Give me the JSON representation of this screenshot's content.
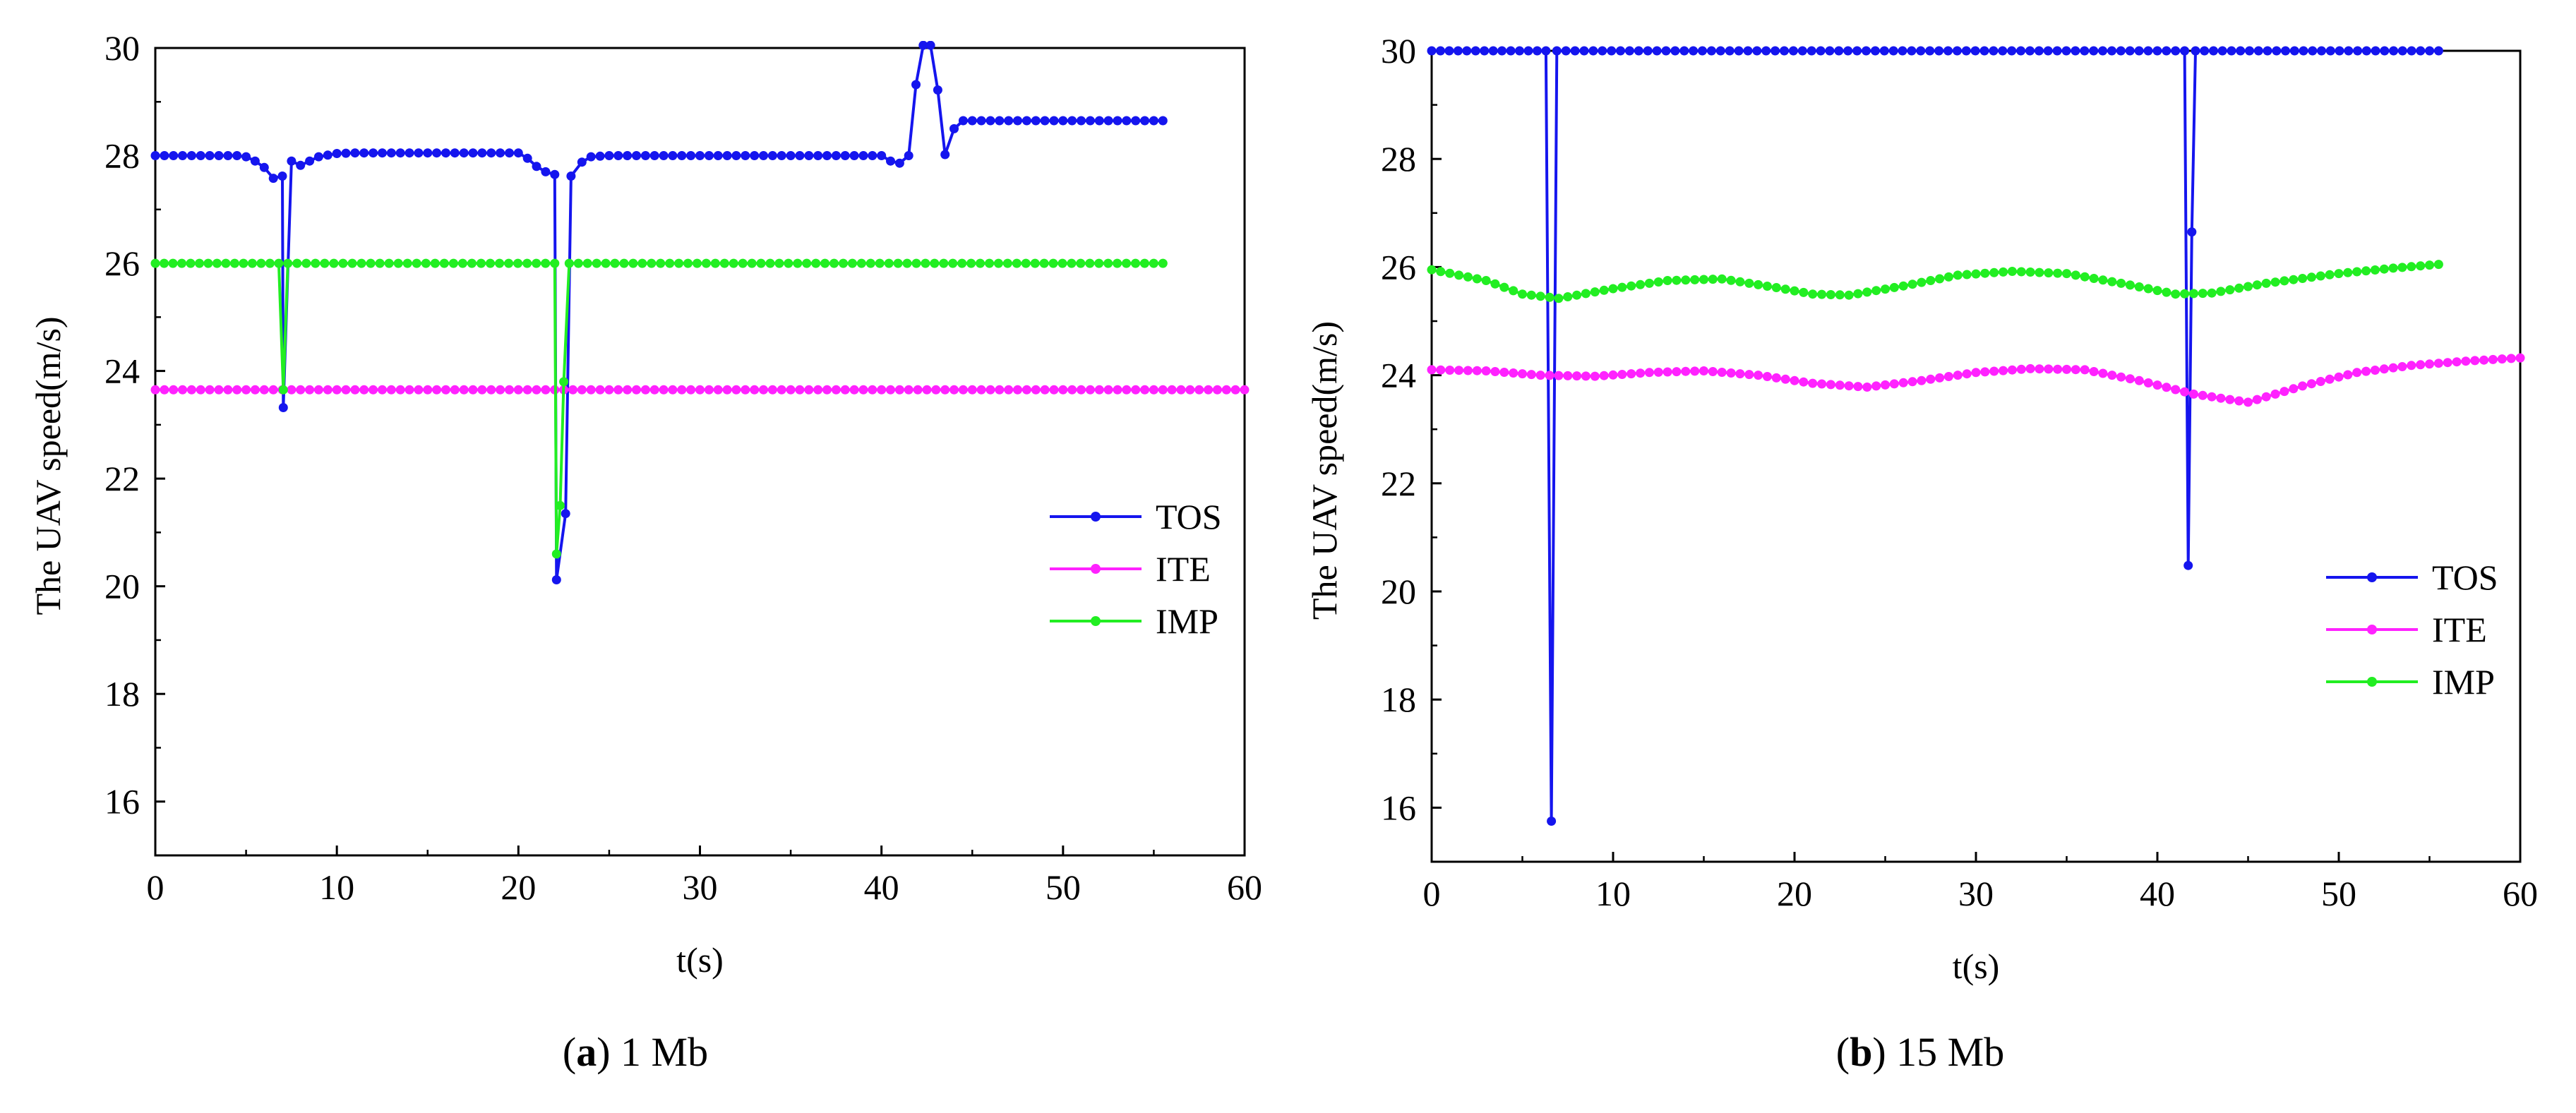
{
  "figure": {
    "captions": [
      {
        "tag": "a",
        "text": "1 Mb"
      },
      {
        "tag": "b",
        "text": "15 Mb"
      }
    ]
  },
  "chart_data": [
    {
      "type": "line",
      "title": "",
      "xlabel": "t(s)",
      "ylabel": "The UAV speed(m/s)",
      "xlim": [
        0,
        60
      ],
      "ylim": [
        15,
        30
      ],
      "xticks": [
        0,
        10,
        20,
        30,
        40,
        50,
        60
      ],
      "yticks": [
        16,
        18,
        20,
        22,
        24,
        26,
        28,
        30
      ],
      "legend_position": "right",
      "grid": false,
      "series": [
        {
          "name": "TOS",
          "color": "#1515ee",
          "points": [
            [
              0,
              28
            ],
            [
              4.5,
              28
            ],
            [
              5,
              27.98
            ],
            [
              5.5,
              27.9
            ],
            [
              6,
              27.78
            ],
            [
              6.5,
              27.58
            ],
            [
              7,
              27.62
            ],
            [
              7.05,
              23.32
            ],
            [
              7.5,
              27.9
            ],
            [
              8,
              27.82
            ],
            [
              8.5,
              27.9
            ],
            [
              9,
              27.98
            ],
            [
              10,
              28.04
            ],
            [
              11,
              28.05
            ],
            [
              20,
              28.05
            ],
            [
              20.5,
              27.95
            ],
            [
              21,
              27.8
            ],
            [
              21.5,
              27.7
            ],
            [
              22,
              27.65
            ],
            [
              22.1,
              20.12
            ],
            [
              22.6,
              21.35
            ],
            [
              22.9,
              27.62
            ],
            [
              23.5,
              27.88
            ],
            [
              24,
              27.98
            ],
            [
              25,
              28
            ],
            [
              40,
              28
            ],
            [
              40.5,
              27.9
            ],
            [
              41,
              27.86
            ],
            [
              41.5,
              28
            ],
            [
              41.9,
              29.32
            ],
            [
              42.3,
              30.05
            ],
            [
              42.7,
              30.05
            ],
            [
              43.1,
              29.22
            ],
            [
              43.5,
              28.02
            ],
            [
              44,
              28.5
            ],
            [
              44.5,
              28.65
            ],
            [
              55.5,
              28.65
            ]
          ]
        },
        {
          "name": "ITE",
          "color": "#ff22ff",
          "points": [
            [
              0,
              23.65
            ],
            [
              60,
              23.65
            ]
          ]
        },
        {
          "name": "IMP",
          "color": "#22ee22",
          "points": [
            [
              0,
              26
            ],
            [
              6.8,
              26
            ],
            [
              7.05,
              23.65
            ],
            [
              7.3,
              26
            ],
            [
              22,
              26
            ],
            [
              22.1,
              20.6
            ],
            [
              22.3,
              21.5
            ],
            [
              22.5,
              23.8
            ],
            [
              22.8,
              26
            ],
            [
              55.5,
              26
            ]
          ]
        }
      ]
    },
    {
      "type": "line",
      "title": "",
      "xlabel": "t(s)",
      "ylabel": "The UAV speed(m/s)",
      "xlim": [
        0,
        60
      ],
      "ylim": [
        15,
        30
      ],
      "xticks": [
        0,
        10,
        20,
        30,
        40,
        50,
        60
      ],
      "yticks": [
        16,
        18,
        20,
        22,
        24,
        26,
        28,
        30
      ],
      "legend_position": "right",
      "grid": false,
      "series": [
        {
          "name": "TOS",
          "color": "#1515ee",
          "points": [
            [
              0,
              30
            ],
            [
              6.3,
              30
            ],
            [
              6.6,
              15.75
            ],
            [
              6.9,
              30
            ],
            [
              41.5,
              30
            ],
            [
              41.7,
              20.48
            ],
            [
              41.9,
              26.65
            ],
            [
              42.1,
              30
            ],
            [
              55.5,
              30
            ]
          ]
        },
        {
          "name": "ITE",
          "color": "#ff22ff",
          "points": [
            [
              0,
              24.1
            ],
            [
              3,
              24.08
            ],
            [
              6,
              24
            ],
            [
              9,
              23.98
            ],
            [
              12,
              24.05
            ],
            [
              15,
              24.08
            ],
            [
              18,
              24
            ],
            [
              21,
              23.85
            ],
            [
              24,
              23.78
            ],
            [
              27,
              23.9
            ],
            [
              30,
              24.05
            ],
            [
              33,
              24.12
            ],
            [
              36,
              24.1
            ],
            [
              39,
              23.9
            ],
            [
              42,
              23.65
            ],
            [
              45,
              23.5
            ],
            [
              48,
              23.8
            ],
            [
              51,
              24.05
            ],
            [
              54,
              24.18
            ],
            [
              57,
              24.26
            ],
            [
              60,
              24.32
            ]
          ]
        },
        {
          "name": "IMP",
          "color": "#22ee22",
          "points": [
            [
              0,
              25.95
            ],
            [
              3,
              25.75
            ],
            [
              5,
              25.5
            ],
            [
              7,
              25.42
            ],
            [
              10,
              25.6
            ],
            [
              13,
              25.75
            ],
            [
              16,
              25.78
            ],
            [
              19,
              25.62
            ],
            [
              21,
              25.5
            ],
            [
              23,
              25.48
            ],
            [
              26,
              25.65
            ],
            [
              29,
              25.85
            ],
            [
              32,
              25.92
            ],
            [
              35,
              25.88
            ],
            [
              38,
              25.7
            ],
            [
              41,
              25.5
            ],
            [
              43,
              25.52
            ],
            [
              46,
              25.7
            ],
            [
              50,
              25.88
            ],
            [
              53,
              25.98
            ],
            [
              55.5,
              26.05
            ]
          ]
        }
      ]
    }
  ]
}
